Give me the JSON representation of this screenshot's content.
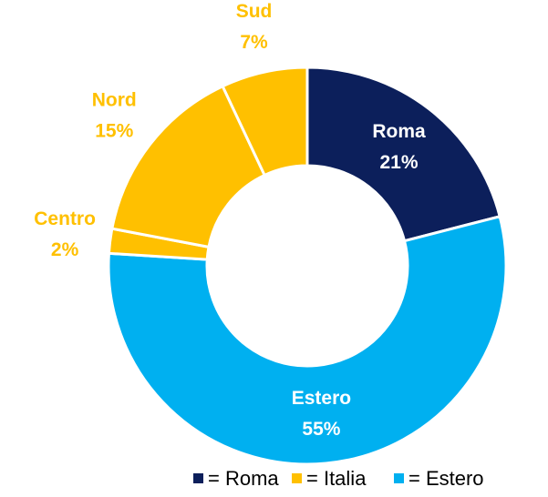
{
  "chart_data": {
    "type": "donut",
    "categories": [
      "Roma",
      "Estero",
      "Centro",
      "Nord",
      "Sud"
    ],
    "values": [
      21,
      55,
      2,
      15,
      7
    ],
    "value_labels": [
      "21%",
      "55%",
      "2%",
      "15%",
      "7%"
    ],
    "colors": [
      "#0c1f5b",
      "#00b0f0",
      "#ffc000",
      "#ffc000",
      "#ffc000"
    ],
    "label_colors": [
      "#ffffff",
      "#ffffff",
      "#ffc000",
      "#ffc000",
      "#ffc000"
    ],
    "legend": [
      {
        "name": "= Roma",
        "color": "#0c1f5b"
      },
      {
        "name": "= Italia",
        "color": "#ffc000"
      },
      {
        "name": "= Estero",
        "color": "#00b0f0"
      }
    ]
  }
}
